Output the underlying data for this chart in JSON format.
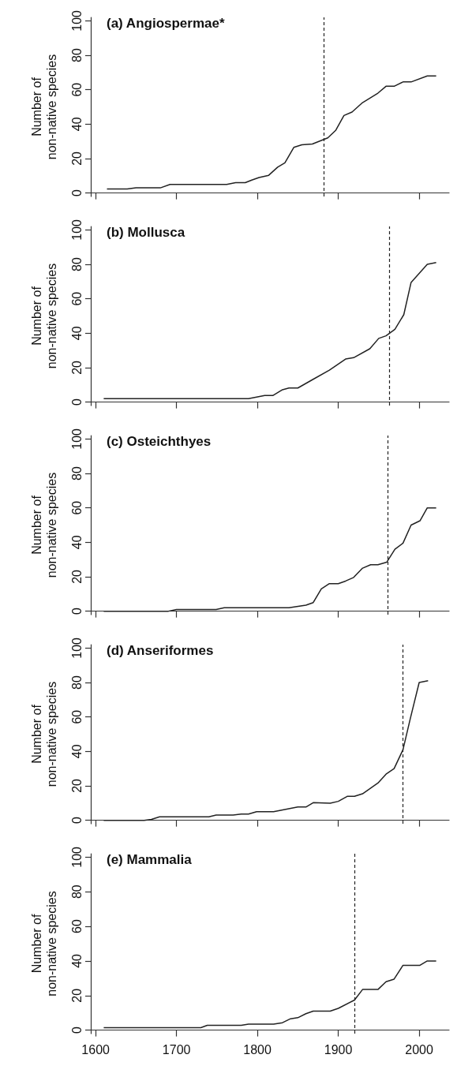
{
  "chart_data": [
    {
      "type": "line",
      "title": "(a) Angiospermae*",
      "ylabel": "Number of non-native species",
      "x": [
        1614,
        1639,
        1650,
        1680,
        1692,
        1762,
        1773,
        1785,
        1793,
        1802,
        1814,
        1825,
        1834,
        1845,
        1855,
        1868,
        1887,
        1897,
        1907,
        1917,
        1930,
        1949,
        1959,
        1969,
        1980,
        1990,
        2010,
        2021
      ],
      "series": [
        {
          "color": "#222222",
          "values": [
            2.3,
            2.3,
            3,
            3,
            5,
            5,
            6,
            6,
            7.5,
            9,
            10.3,
            15,
            17.5,
            26.5,
            28,
            28.5,
            32,
            36.5,
            45,
            47,
            52.5,
            58,
            62,
            62,
            64.5,
            64.5,
            68,
            68
          ]
        }
      ],
      "xlim": [
        1594,
        2037
      ],
      "xticks": [
        1600,
        1700,
        1800,
        1900,
        2000
      ],
      "ylim": [
        -2,
        102
      ],
      "yticks": [
        0,
        20,
        40,
        60,
        80,
        100
      ],
      "tick_labels": "y",
      "marker": "none",
      "ref_lines": [
        {
          "axis": "x",
          "value": 1882,
          "line_style": "dashed"
        }
      ]
    },
    {
      "type": "line",
      "title": "(b) Mollusca",
      "ylabel": "Number of non-native species",
      "x": [
        1610,
        1789,
        1809,
        1819,
        1831,
        1839,
        1850,
        1868,
        1889,
        1909,
        1919,
        1939,
        1950,
        1959,
        1970,
        1981,
        1990,
        2010,
        2021
      ],
      "series": [
        {
          "color": "#222222",
          "values": [
            2,
            2,
            3.8,
            3.8,
            7.2,
            8.2,
            8.2,
            13,
            18.6,
            25,
            25.8,
            31,
            37,
            38.5,
            42.3,
            50.8,
            69.5,
            80,
            81
          ]
        }
      ],
      "xlim": [
        1594,
        2037
      ],
      "xticks": [
        1600,
        1700,
        1800,
        1900,
        2000
      ],
      "ylim": [
        -2,
        102
      ],
      "yticks": [
        0,
        20,
        40,
        60,
        80,
        100
      ],
      "tick_labels": "y",
      "marker": "none",
      "ref_lines": [
        {
          "axis": "x",
          "value": 1963,
          "line_style": "dashed"
        }
      ]
    },
    {
      "type": "line",
      "title": "(c) Osteichthyes",
      "ylabel": "Number of non-native species",
      "x": [
        1610,
        1690,
        1700,
        1749,
        1759,
        1839,
        1860,
        1869,
        1879,
        1889,
        1900,
        1909,
        1919,
        1930,
        1940,
        1949,
        1960,
        1970,
        1980,
        1990,
        2001,
        2010,
        2021
      ],
      "series": [
        {
          "color": "#222222",
          "values": [
            0,
            0,
            1,
            1,
            2,
            2,
            3.5,
            5,
            13,
            16,
            16,
            17.5,
            19.6,
            25,
            27,
            27,
            28.5,
            36,
            39.5,
            50,
            52.5,
            60,
            60
          ]
        }
      ],
      "xlim": [
        1594,
        2037
      ],
      "xticks": [
        1600,
        1700,
        1800,
        1900,
        2000
      ],
      "ylim": [
        -2,
        102
      ],
      "yticks": [
        0,
        20,
        40,
        60,
        80,
        100
      ],
      "tick_labels": "y",
      "marker": "none",
      "ref_lines": [
        {
          "axis": "x",
          "value": 1961,
          "line_style": "dashed"
        }
      ]
    },
    {
      "type": "line",
      "title": "(d) Anseriformes",
      "ylabel": "Number of non-native species",
      "x": [
        1610,
        1660,
        1669,
        1679,
        1740,
        1749,
        1770,
        1780,
        1789,
        1799,
        1820,
        1850,
        1860,
        1869,
        1890,
        1900,
        1911,
        1920,
        1930,
        1949,
        1959,
        1969,
        1980,
        1989,
        2000,
        2011
      ],
      "series": [
        {
          "color": "#222222",
          "values": [
            0,
            0,
            0.5,
            2,
            2,
            3,
            3,
            3.6,
            3.6,
            5,
            5,
            7.7,
            7.7,
            10.2,
            9.9,
            11,
            13.9,
            13.9,
            15.4,
            21.6,
            26.8,
            30,
            41,
            59,
            80,
            81
          ]
        }
      ],
      "xlim": [
        1594,
        2037
      ],
      "xticks": [
        1600,
        1700,
        1800,
        1900,
        2000
      ],
      "ylim": [
        -2,
        102
      ],
      "yticks": [
        0,
        20,
        40,
        60,
        80,
        100
      ],
      "tick_labels": "y",
      "marker": "none",
      "ref_lines": [
        {
          "axis": "x",
          "value": 1980,
          "line_style": "dashed"
        }
      ]
    },
    {
      "type": "line",
      "title": "(e) Mammalia",
      "ylabel": "Number of non-native species",
      "x": [
        1610,
        1730,
        1738,
        1780,
        1789,
        1820,
        1831,
        1841,
        1850,
        1860,
        1869,
        1890,
        1900,
        1920,
        1930,
        1949,
        1959,
        1969,
        1980,
        2001,
        2010,
        2021
      ],
      "series": [
        {
          "color": "#222222",
          "values": [
            1.4,
            1.4,
            2.8,
            2.8,
            3.5,
            3.5,
            4.3,
            6.6,
            7.2,
            9.5,
            11,
            11,
            12.6,
            17.4,
            23.5,
            23.5,
            28,
            29.5,
            37.5,
            37.5,
            40,
            40
          ]
        }
      ],
      "xlim": [
        1594,
        2037
      ],
      "xticks": [
        1600,
        1700,
        1800,
        1900,
        2000
      ],
      "ylim": [
        -2,
        102
      ],
      "yticks": [
        0,
        20,
        40,
        60,
        80,
        100
      ],
      "marker": "none",
      "ref_lines": [
        {
          "axis": "x",
          "value": 1920,
          "line_style": "dashed"
        }
      ]
    }
  ]
}
